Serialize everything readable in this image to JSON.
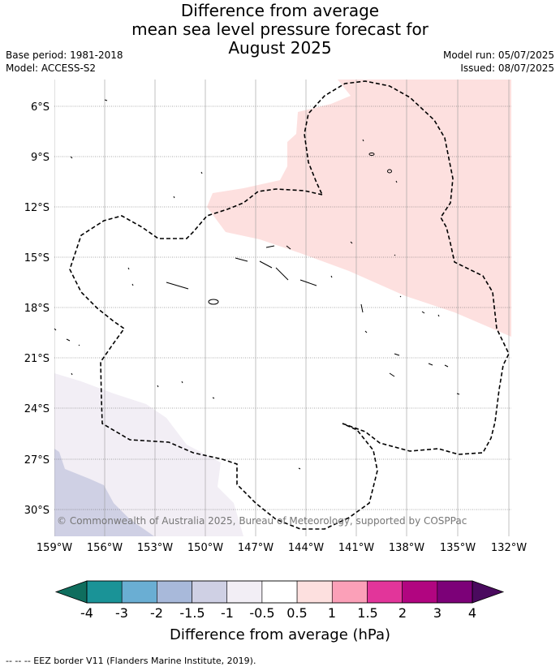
{
  "title": {
    "line1": "Difference from average",
    "line2": "mean sea level pressure forecast for",
    "line3": "August 2025"
  },
  "meta": {
    "base_period": "Base period: 1981-2018",
    "model": "Model: ACCESS-S2",
    "model_run": "Model run: 05/07/2025",
    "issued": "Issued: 08/07/2025"
  },
  "map": {
    "copyright": "© Commonwealth of Australia 2025, Bureau of Meteorology, supported by COSPPac",
    "lat_labels": [
      "6°S",
      "9°S",
      "12°S",
      "15°S",
      "18°S",
      "21°S",
      "24°S",
      "27°S",
      "30°S"
    ],
    "lon_labels": [
      "159°W",
      "156°W",
      "153°W",
      "150°W",
      "147°W",
      "144°W",
      "141°W",
      "138°W",
      "135°W",
      "132°W"
    ],
    "colors": {
      "positive_05_1": "#fde0df",
      "negative_05_1": "#f2eef5",
      "negative_1_15": "#cfd0e4"
    }
  },
  "colorbar": {
    "tick_labels": [
      "-4",
      "-3",
      "-2",
      "-1.5",
      "-1",
      "-0.5",
      "0.5",
      "1",
      "1.5",
      "2",
      "3",
      "4"
    ],
    "label": "Difference from average (hPa)",
    "low_extend_color": "#0f6e5e",
    "high_extend_color": "#4a0a5e",
    "bins": [
      {
        "color": "#1a9397"
      },
      {
        "color": "#6aaed3"
      },
      {
        "color": "#a8b9da"
      },
      {
        "color": "#cfd0e4"
      },
      {
        "color": "#f2eef5"
      },
      {
        "color": "#ffffff"
      },
      {
        "color": "#fde0df"
      },
      {
        "color": "#fba0b8"
      },
      {
        "color": "#e2359a"
      },
      {
        "color": "#b10580"
      },
      {
        "color": "#7c0178"
      }
    ]
  },
  "footer": {
    "legend": "-- -- -- EEZ border V11 (Flanders Marine Institute, 2019)."
  }
}
